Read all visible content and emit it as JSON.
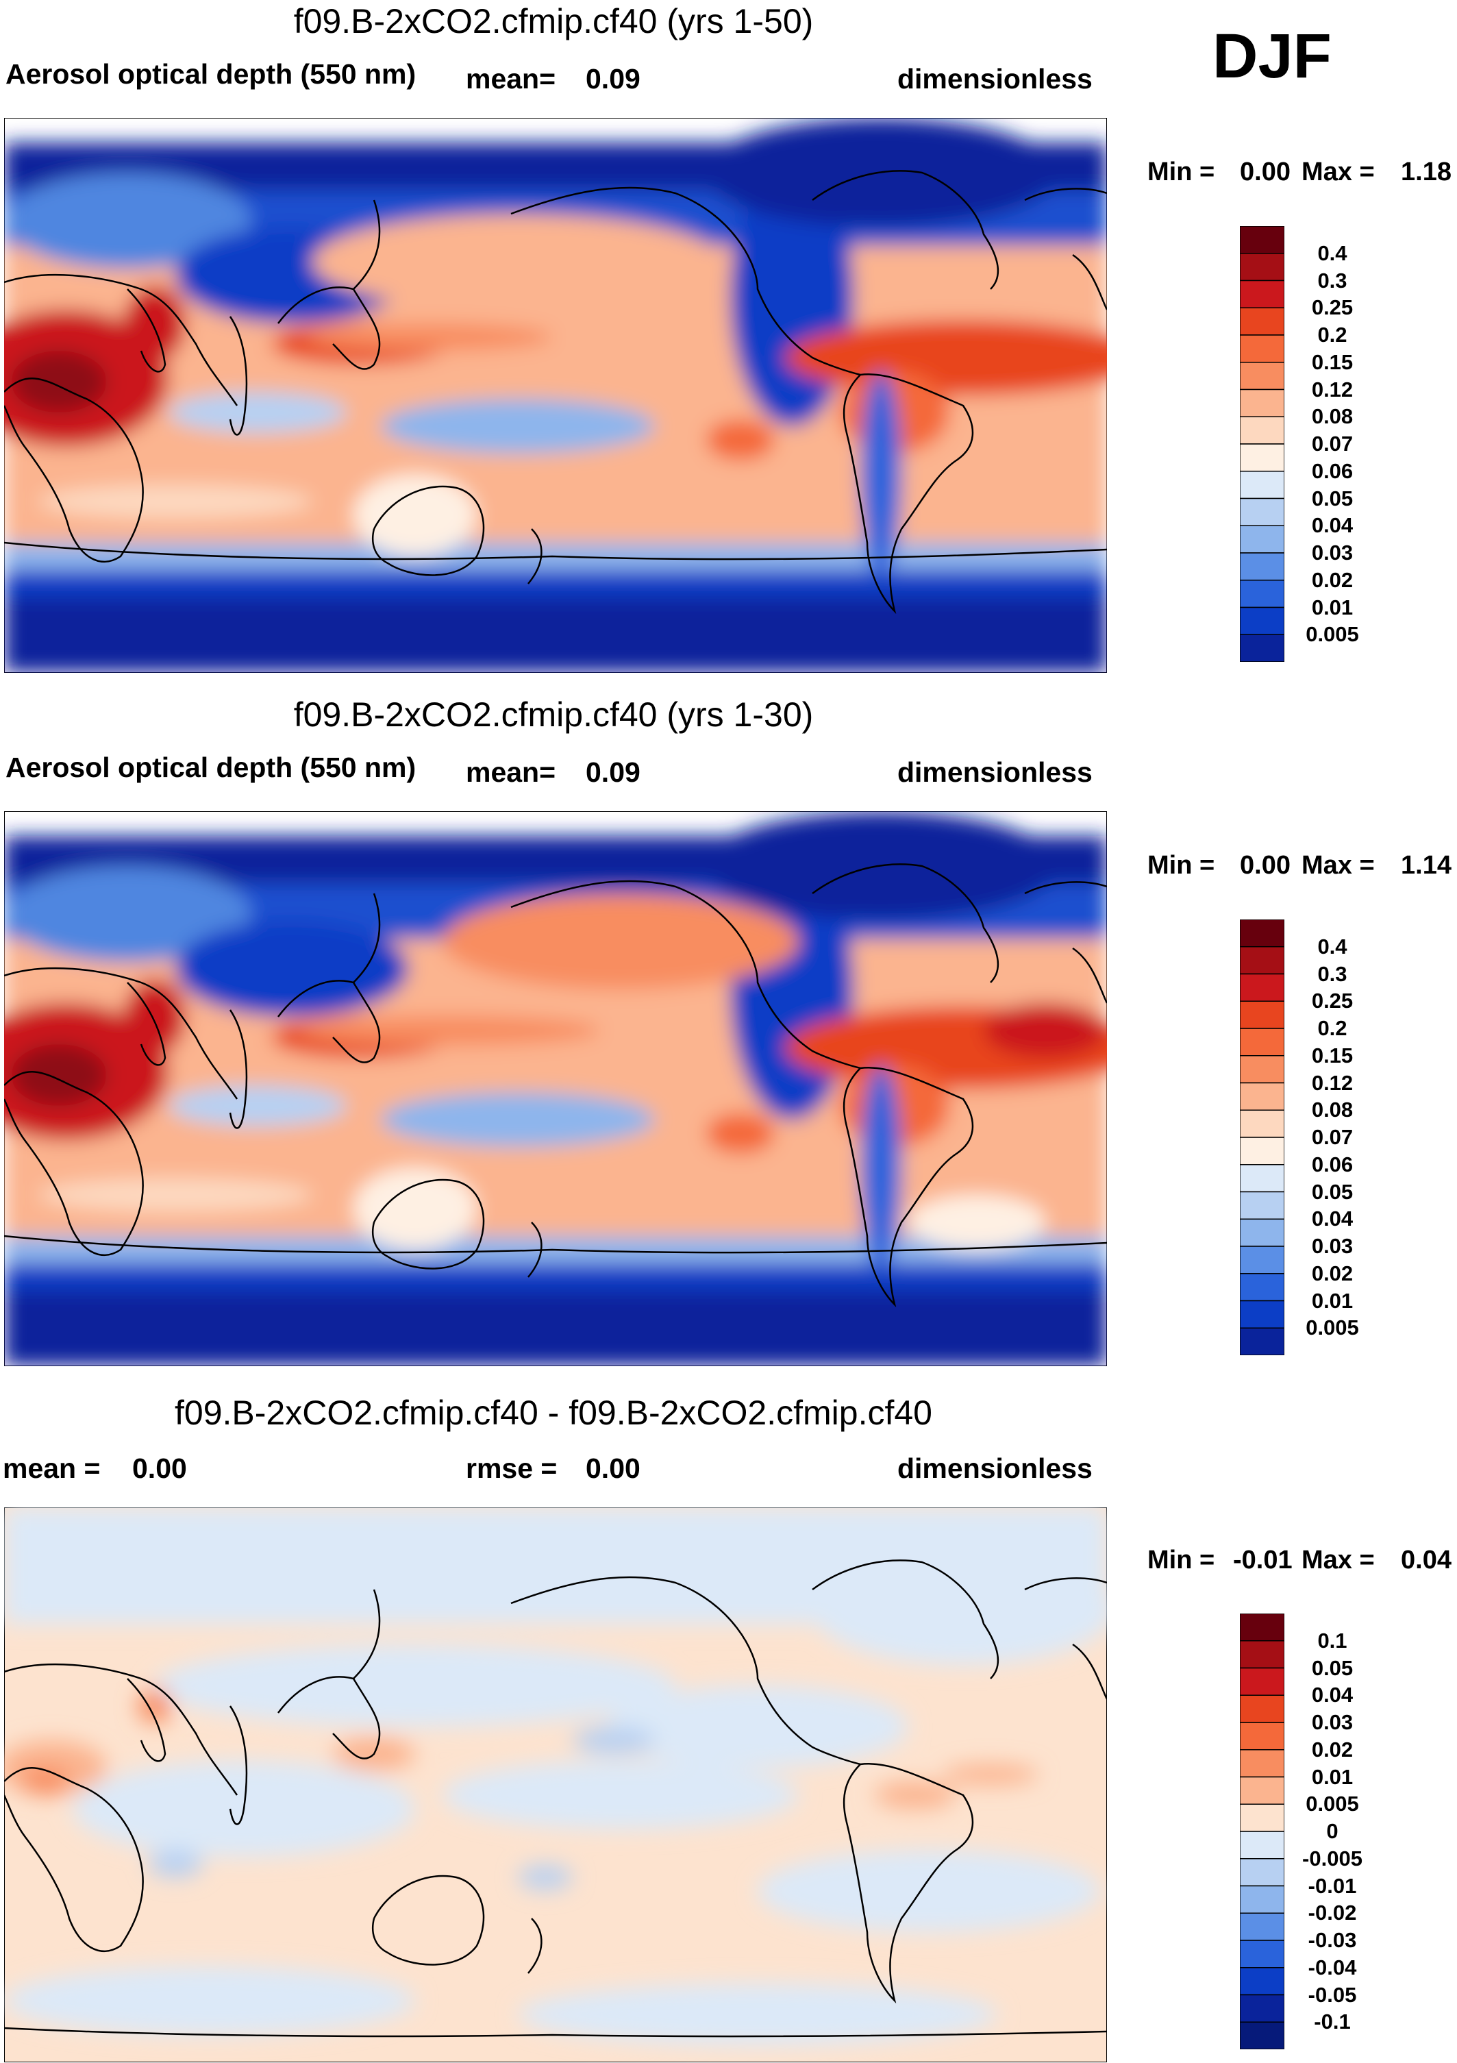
{
  "season": "DJF",
  "panels": [
    {
      "title": "f09.B-2xCO2.cfmip.cf40 (yrs 1-50)",
      "variable": "Aerosol optical depth (550 nm)",
      "stat_label": "mean=",
      "stat_value": "0.09",
      "units": "dimensionless",
      "min_label": "Min =",
      "min_value": "0.00",
      "max_label": "Max =",
      "max_value": "1.18"
    },
    {
      "title": "f09.B-2xCO2.cfmip.cf40 (yrs 1-30)",
      "variable": "Aerosol optical depth (550 nm)",
      "stat_label": "mean=",
      "stat_value": "0.09",
      "units": "dimensionless",
      "min_label": "Min =",
      "min_value": "0.00",
      "max_label": "Max =",
      "max_value": "1.14"
    },
    {
      "title": "f09.B-2xCO2.cfmip.cf40 - f09.B-2xCO2.cfmip.cf40",
      "mean_label": "mean =",
      "mean_value": "0.00",
      "rmse_label": "rmse =",
      "rmse_value": "0.00",
      "units": "dimensionless",
      "min_label": "Min =",
      "min_value": "-0.01",
      "max_label": "Max =",
      "max_value": "0.04"
    }
  ],
  "colorbars": {
    "field": {
      "labels": [
        "0.4",
        "0.3",
        "0.25",
        "0.2",
        "0.15",
        "0.12",
        "0.08",
        "0.07",
        "0.06",
        "0.05",
        "0.04",
        "0.03",
        "0.02",
        "0.01",
        "0.005"
      ],
      "colors": [
        "#67000d",
        "#a50f15",
        "#cb181d",
        "#e8451f",
        "#f4693a",
        "#f88d60",
        "#fbb48f",
        "#fdd8bf",
        "#fef0e3",
        "#dce9f8",
        "#b7d0f2",
        "#8eb5ec",
        "#5b8fe6",
        "#2a63db",
        "#0c3ec6",
        "#0a239b"
      ]
    },
    "diff": {
      "labels": [
        "0.1",
        "0.05",
        "0.04",
        "0.03",
        "0.02",
        "0.01",
        "0.005",
        "0",
        "-0.005",
        "-0.01",
        "-0.02",
        "-0.03",
        "-0.04",
        "-0.05",
        "-0.1"
      ],
      "colors": [
        "#67000d",
        "#a50f15",
        "#cb181d",
        "#e8451f",
        "#f4693a",
        "#f88d60",
        "#fbb48f",
        "#fde3cf",
        "#dce9f8",
        "#b7d0f2",
        "#8eb5ec",
        "#5b8fe6",
        "#2a63db",
        "#0c3ec6",
        "#0a239b",
        "#061a7a"
      ]
    }
  },
  "map_colors": {
    "polar": "#0a1f8c",
    "deep_blue": "#1d4fcf",
    "mid_blue": "#4f86e0",
    "light_blue": "#a8c8f0",
    "pale_blue": "#d8e6f7",
    "ocean_pale": "#fde3cf",
    "ocean_salmon": "#fbb48f",
    "orange": "#f4693a",
    "red": "#cb181d",
    "dark_red": "#8e0c12",
    "coast": "#000000"
  }
}
